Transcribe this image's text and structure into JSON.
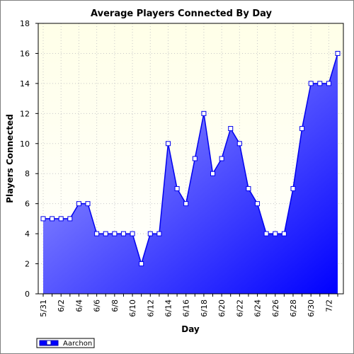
{
  "chart_data": {
    "type": "area",
    "title": "Average Players Connected By Day",
    "xlabel": "Day",
    "ylabel": "Players Connected",
    "ylim": [
      0,
      18
    ],
    "yticks": [
      0,
      2,
      4,
      6,
      8,
      10,
      12,
      14,
      16,
      18
    ],
    "x": [
      "5/31",
      "6/1",
      "6/2",
      "6/3",
      "6/4",
      "6/5",
      "6/6",
      "6/7",
      "6/8",
      "6/9",
      "6/10",
      "6/11",
      "6/12",
      "6/13",
      "6/14",
      "6/15",
      "6/16",
      "6/17",
      "6/18",
      "6/19",
      "6/20",
      "6/21",
      "6/22",
      "6/23",
      "6/24",
      "6/25",
      "6/26",
      "6/27",
      "6/28",
      "6/29",
      "6/30",
      "7/1",
      "7/2",
      "7/3"
    ],
    "xtick_labels": [
      "5/31",
      "6/2",
      "6/4",
      "6/6",
      "6/8",
      "6/10",
      "6/12",
      "6/14",
      "6/16",
      "6/18",
      "6/20",
      "6/22",
      "6/24",
      "6/26",
      "6/28",
      "6/30",
      "7/2"
    ],
    "series": [
      {
        "name": "Aarchon",
        "values": [
          5,
          5,
          5,
          5,
          6,
          6,
          4,
          4,
          4,
          4,
          4,
          2,
          4,
          4,
          10,
          7,
          6,
          9,
          12,
          8,
          9,
          11,
          10,
          7,
          6,
          4,
          4,
          4,
          7,
          11,
          14,
          14,
          14,
          16
        ]
      }
    ],
    "grid": true,
    "legend": "bottom-left",
    "colors": {
      "plot_bg_top": "#ffffe8",
      "plot_bg_bottom": "#ffffff",
      "fill_light": "#b0b0ff",
      "fill_dark": "#0000ff",
      "line": "#0000ee",
      "marker_fill": "#ffffff",
      "grid": "#c8c8c8"
    }
  }
}
